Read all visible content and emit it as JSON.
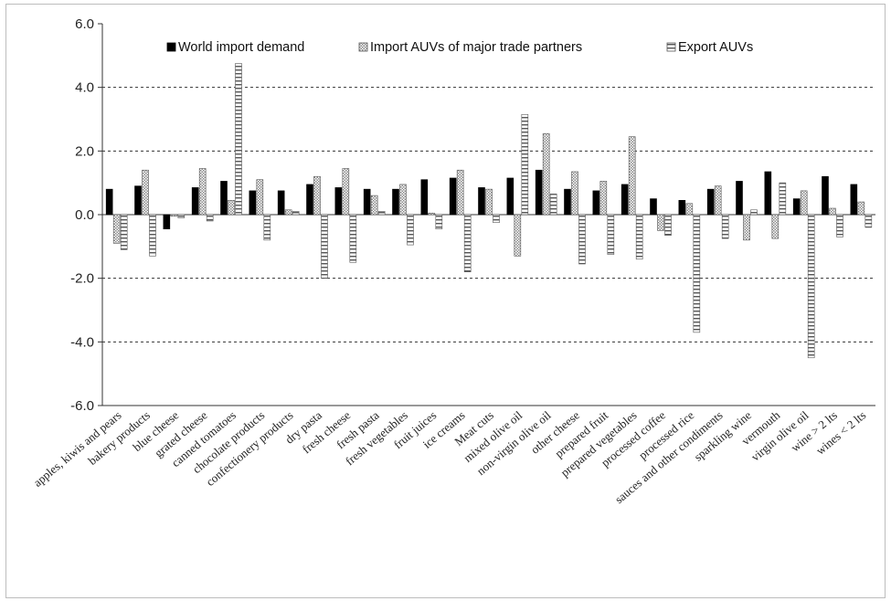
{
  "chart_data": {
    "type": "bar",
    "title": "",
    "xlabel": "",
    "ylabel": "",
    "ylim": [
      -6.0,
      6.0
    ],
    "yticks": [
      "6.0",
      "4.0",
      "2.0",
      "0.0",
      "-2.0",
      "-4.0",
      "-6.0"
    ],
    "grid": "dashed horizontal",
    "legend_position": "top",
    "categories": [
      "apples, kiwis and pears",
      "bakery products",
      "blue cheese",
      "grated cheese",
      "canned tomatoes",
      "chocolate products",
      "confectionery products",
      "dry pasta",
      "fresh cheese",
      "fresh pasta",
      "fresh vegetables",
      "fruit juices",
      "ice creams",
      "Meat cuts",
      "mixed olive oil",
      "non-virgin olive oil",
      "other cheese",
      "prepared fruit",
      "prepared vegetables",
      "processed coffee",
      "processed rice",
      "sauces and other condiments",
      "sparkling wine",
      "vermouth",
      "virgin olive oil",
      "wine > 2 lts",
      "wines < 2 lts"
    ],
    "series": [
      {
        "name": "World import demand",
        "pattern": "solid",
        "color": "#000000",
        "values": [
          0.8,
          0.9,
          -0.45,
          0.85,
          1.05,
          0.75,
          0.75,
          0.95,
          0.85,
          0.8,
          0.8,
          1.1,
          1.15,
          0.85,
          1.15,
          1.4,
          0.8,
          0.75,
          0.95,
          0.5,
          0.45,
          0.8,
          1.05,
          1.35,
          0.5,
          1.2,
          0.95
        ]
      },
      {
        "name": "Import AUVs of major trade partners",
        "pattern": "dotted",
        "color": "#888888",
        "values": [
          -0.9,
          1.4,
          -0.05,
          1.45,
          0.45,
          1.1,
          0.15,
          1.2,
          1.45,
          0.6,
          0.95,
          0.05,
          1.4,
          0.8,
          -1.3,
          2.55,
          1.35,
          1.05,
          2.45,
          -0.5,
          0.35,
          0.9,
          -0.8,
          -0.75,
          0.75,
          0.2,
          0.4
        ]
      },
      {
        "name": "Export AUVs",
        "pattern": "horizontal-stripes",
        "color": "#555555",
        "values": [
          -1.1,
          -1.3,
          -0.1,
          -0.2,
          4.75,
          -0.8,
          0.1,
          -2.0,
          -1.5,
          0.1,
          -0.95,
          -0.45,
          -1.8,
          -0.25,
          3.15,
          0.65,
          -1.55,
          -1.25,
          -1.4,
          -0.65,
          -3.7,
          -0.75,
          0.15,
          1.0,
          -4.5,
          -0.7,
          -0.4
        ]
      }
    ]
  }
}
